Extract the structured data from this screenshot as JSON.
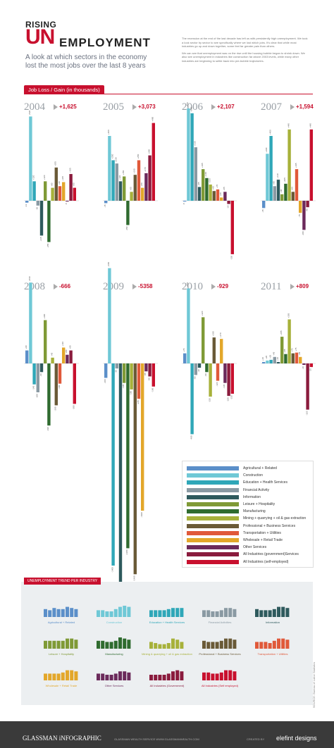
{
  "header": {
    "rising": "RISING",
    "un": "UN",
    "rest": "EMPLOYMENT",
    "subtitle": "A look at which sectors in the economy lost the most jobs over the last 8 years",
    "intro_p1": "The recession at the end of the last decade has left us with persistently high unemployment. We took a look sector by sector to see specifically where we lost which jobs. It's clear that while most industries go up and down together, some feel far greater pain than others.",
    "intro_p2": "We can see that unemployment was on the rise until the housing bubble began to shrink down. We also see unemployment in industries like construction far above 2003 levels, while many other industries are beginning to settle back into pre-bubble trajectories."
  },
  "axis_tag": "Job Loss / Gain",
  "axis_tag_unit": "(in thousands)",
  "colors": [
    "#5b8fc9",
    "#6fc8d6",
    "#2fa7b8",
    "#8a9aa3",
    "#2e5a5d",
    "#7f9a36",
    "#2f6b2f",
    "#a7b13a",
    "#6a5a37",
    "#e0593a",
    "#e3a72a",
    "#6b2a5b",
    "#8a1b3d",
    "#c8102e"
  ],
  "legend": [
    "Agricultural + Related",
    "Construction",
    "Education + Health Services",
    "Financial Activity",
    "Information",
    "Leisure + Hospitality",
    "Manufacturing",
    "Mining + quarrying + oil & gas extraction",
    "Professional + Business Services",
    "Transportation + Utilities",
    "Wholesale + Retail Trade",
    "Other Services",
    "All Industries (government)Services",
    "All Industries (self-employed)"
  ],
  "chart_data": {
    "type": "bar",
    "units": "thousands of jobs",
    "series_names": [
      "Agricultural + Related",
      "Construction",
      "Education + Health Services",
      "Financial Activity",
      "Information",
      "Leisure + Hospitality",
      "Manufacturing",
      "Mining + quarrying + oil & gas extraction",
      "Professional + Business Services",
      "Transportation + Utilities",
      "Wholesale + Retail Trade",
      "Other Services",
      "All Industries (government)Services",
      "All Industries (self-employed)"
    ],
    "panels": [
      {
        "year": "2004",
        "total": "+1,625",
        "values": [
          -12,
          520,
          120,
          -30,
          -215,
          120,
          -255,
          80,
          205,
          90,
          115,
          -5,
          165,
          80
        ]
      },
      {
        "year": "2005",
        "total": "+3,073",
        "values": [
          -15,
          400,
          250,
          230,
          120,
          150,
          -150,
          55,
          160,
          250,
          80,
          170,
          280,
          480
        ]
      },
      {
        "year": "2006",
        "total": "+2,107",
        "values": [
          -5,
          570,
          540,
          330,
          85,
          195,
          140,
          100,
          60,
          70,
          20,
          55,
          -20,
          -330
        ]
      },
      {
        "year": "2007",
        "total": "+1,594",
        "values": [
          -45,
          290,
          400,
          90,
          130,
          40,
          105,
          440,
          55,
          195,
          -75,
          -180,
          -40,
          440
        ]
      },
      {
        "year": "2008",
        "total": "-666",
        "values": [
          90,
          560,
          -145,
          -200,
          -60,
          300,
          -430,
          40,
          -290,
          -140,
          110,
          60,
          90,
          -280
        ]
      },
      {
        "year": "2009",
        "total": "-5358",
        "values": [
          -100,
          660,
          -1400,
          -35,
          -1870,
          -135,
          -1280,
          -180,
          -1460,
          -245,
          -1020,
          -55,
          -90,
          -160
        ]
      },
      {
        "year": "2010",
        "total": "-929",
        "values": [
          70,
          520,
          -490,
          -80,
          -30,
          320,
          -60,
          -230,
          180,
          -120,
          170,
          -135,
          -225,
          -210
        ]
      },
      {
        "year": "2011",
        "total": "+809",
        "values": [
          10,
          20,
          25,
          45,
          10,
          185,
          65,
          305,
          70,
          75,
          45,
          -10,
          -320,
          -25
        ]
      }
    ]
  },
  "trend": {
    "title": "UNEMPLOYMENT TREND PER INDUSTRY",
    "items": [
      {
        "label": "Agricultural + Related",
        "values": [
          7,
          6,
          8,
          7,
          7,
          9,
          8,
          7
        ]
      },
      {
        "label": "Construction",
        "values": [
          6,
          6,
          5,
          5,
          7,
          9,
          10,
          9
        ]
      },
      {
        "label": "Education + Health Services",
        "values": [
          6,
          6,
          6,
          6,
          7,
          8,
          8,
          8
        ]
      },
      {
        "label": "Financial Activities",
        "values": [
          6,
          6,
          5,
          5,
          6,
          8,
          8,
          7
        ]
      },
      {
        "label": "Information",
        "values": [
          7,
          6,
          6,
          6,
          7,
          9,
          9,
          8
        ]
      },
      {
        "label": "Leisure + Hospitality",
        "values": [
          7,
          7,
          7,
          7,
          7,
          9,
          9,
          8
        ]
      },
      {
        "label": "Manufacturing",
        "values": [
          7,
          7,
          6,
          6,
          7,
          10,
          9,
          8
        ]
      },
      {
        "label": "Mining & quarrying + oil & gas extraction",
        "values": [
          6,
          5,
          4,
          4,
          5,
          9,
          8,
          6
        ]
      },
      {
        "label": "Professional + Business Services",
        "values": [
          7,
          6,
          6,
          6,
          7,
          9,
          9,
          8
        ]
      },
      {
        "label": "Transportation + Utilities",
        "values": [
          6,
          6,
          6,
          5,
          7,
          9,
          9,
          8
        ]
      },
      {
        "label": "Wholesale + Retail Trade",
        "values": [
          6,
          6,
          6,
          6,
          7,
          9,
          9,
          8
        ]
      },
      {
        "label": "Other Services",
        "values": [
          6,
          6,
          5,
          5,
          6,
          8,
          8,
          7
        ]
      },
      {
        "label": "All Industries (Government)",
        "values": [
          5,
          5,
          5,
          5,
          6,
          8,
          9,
          8
        ]
      },
      {
        "label": "All Industries (Self employed)",
        "values": [
          7,
          7,
          6,
          6,
          7,
          9,
          9,
          8
        ]
      }
    ]
  },
  "footer": {
    "brand": "GLASSMAN iNFOGRAPHIC",
    "middle": "GLASSMAN WEALTH SERVICE   WWW.GLASSMANWEALTH.COM",
    "created": "CREATED BY",
    "designer": "elefint designs",
    "source": "SOURCE: Bureau of Labor Statistics"
  }
}
